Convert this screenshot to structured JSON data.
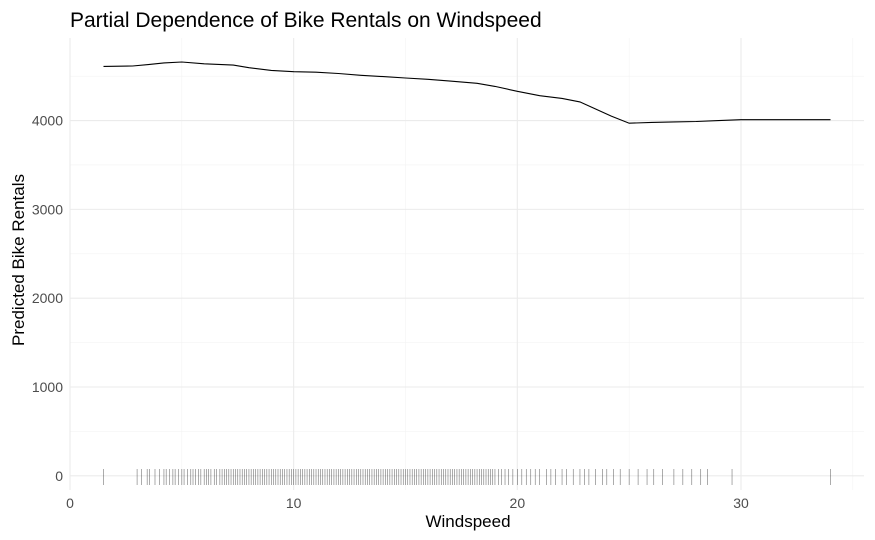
{
  "chart_data": {
    "type": "line",
    "title": "Partial Dependence of Bike Rentals on Windspeed",
    "xlabel": "Windspeed",
    "ylabel": "Predicted Bike Rentals",
    "xlim": [
      0,
      35.5
    ],
    "ylim": [
      -160,
      4930
    ],
    "x_ticks": [
      0,
      10,
      20,
      30
    ],
    "y_ticks": [
      0,
      1000,
      2000,
      3000,
      4000
    ],
    "x_tick_labels": [
      "0",
      "10",
      "20",
      "30"
    ],
    "y_tick_labels": [
      "0",
      "1000",
      "2000",
      "3000",
      "4000"
    ],
    "grid": true,
    "legend": "none",
    "series": [
      {
        "x": [
          1.5,
          2.8,
          3.5,
          4.2,
          5.0,
          6.0,
          7.3,
          8.0,
          9.0,
          10.0,
          11.0,
          12.0,
          13.0,
          14.0,
          15.0,
          16.0,
          17.0,
          18.2,
          19.0,
          20.0,
          21.0,
          22.0,
          22.8,
          23.5,
          24.2,
          25.0,
          26.0,
          27.0,
          28.0,
          29.0,
          30.0,
          31.0,
          32.0,
          33.0,
          34.0
        ],
        "y": [
          4610,
          4615,
          4630,
          4650,
          4660,
          4640,
          4625,
          4595,
          4565,
          4550,
          4545,
          4530,
          4510,
          4495,
          4480,
          4465,
          4445,
          4420,
          4385,
          4330,
          4280,
          4250,
          4210,
          4130,
          4050,
          3970,
          3980,
          3985,
          3990,
          4000,
          4010,
          4010,
          4010,
          4010,
          4010
        ]
      }
    ],
    "rug_x": [
      1.5,
      3.0,
      3.2,
      3.45,
      3.55,
      3.8,
      4.0,
      4.2,
      4.3,
      4.45,
      4.6,
      4.7,
      4.85,
      5.0,
      5.1,
      5.25,
      5.4,
      5.5,
      5.62,
      5.75,
      5.85,
      6.0,
      6.1,
      6.2,
      6.3,
      6.45,
      6.55,
      6.7,
      6.8,
      6.9,
      7.0,
      7.1,
      7.2,
      7.3,
      7.4,
      7.5,
      7.6,
      7.7,
      7.8,
      7.9,
      8.0,
      8.1,
      8.2,
      8.3,
      8.4,
      8.5,
      8.6,
      8.7,
      8.8,
      8.9,
      9.0,
      9.1,
      9.2,
      9.3,
      9.4,
      9.5,
      9.6,
      9.7,
      9.8,
      9.9,
      10.0,
      10.1,
      10.2,
      10.3,
      10.4,
      10.5,
      10.6,
      10.7,
      10.8,
      10.9,
      11.0,
      11.1,
      11.2,
      11.3,
      11.4,
      11.5,
      11.6,
      11.7,
      11.8,
      11.9,
      12.0,
      12.1,
      12.2,
      12.3,
      12.4,
      12.5,
      12.6,
      12.7,
      12.8,
      12.9,
      13.0,
      13.1,
      13.2,
      13.3,
      13.4,
      13.5,
      13.6,
      13.7,
      13.8,
      13.9,
      14.0,
      14.1,
      14.2,
      14.3,
      14.4,
      14.5,
      14.6,
      14.7,
      14.8,
      14.9,
      15.0,
      15.1,
      15.2,
      15.3,
      15.4,
      15.5,
      15.6,
      15.7,
      15.8,
      15.9,
      16.0,
      16.1,
      16.2,
      16.3,
      16.4,
      16.5,
      16.6,
      16.7,
      16.8,
      16.9,
      17.0,
      17.1,
      17.2,
      17.3,
      17.4,
      17.5,
      17.6,
      17.7,
      17.8,
      17.9,
      18.0,
      18.1,
      18.2,
      18.3,
      18.4,
      18.5,
      18.6,
      18.7,
      18.8,
      18.9,
      19.0,
      19.15,
      19.3,
      19.45,
      19.6,
      19.8,
      20.0,
      20.2,
      20.4,
      20.6,
      20.8,
      21.0,
      21.3,
      21.5,
      21.7,
      22.0,
      22.2,
      22.5,
      22.8,
      23.0,
      23.2,
      23.5,
      23.8,
      24.0,
      24.3,
      24.6,
      25.0,
      25.4,
      25.8,
      26.1,
      26.5,
      27.0,
      27.4,
      27.8,
      28.2,
      28.5,
      29.6,
      34.0
    ]
  }
}
